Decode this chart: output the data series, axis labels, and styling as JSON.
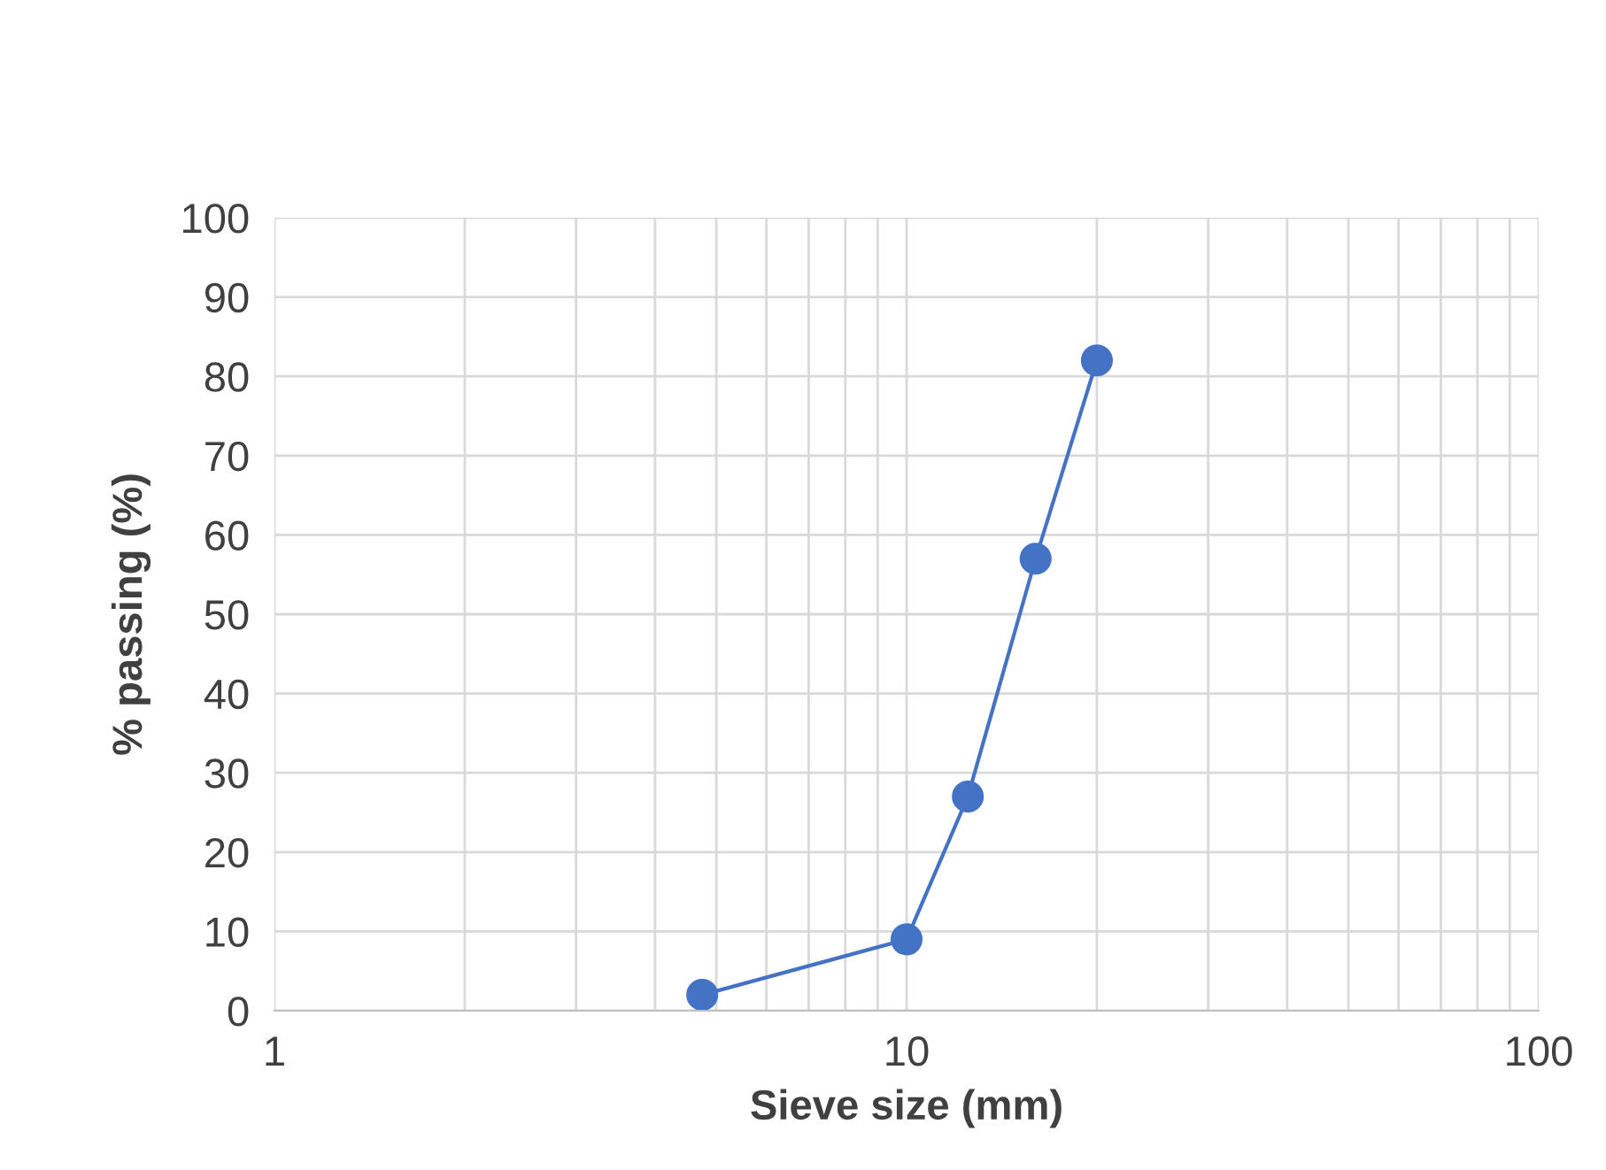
{
  "chart_data": {
    "type": "line",
    "xlabel": "Sieve size (mm)",
    "ylabel": "% passing (%)",
    "x": [
      4.75,
      10,
      12.5,
      16,
      20
    ],
    "series": [
      {
        "color": "#4472c4",
        "values": [
          2,
          9,
          27,
          57,
          82
        ]
      }
    ],
    "log": "x",
    "xlim": [
      1,
      100
    ],
    "xticks": [
      1,
      10,
      100
    ],
    "ylim": [
      0,
      100
    ],
    "yticks": [
      0,
      10,
      20,
      30,
      40,
      50,
      60,
      70,
      80,
      90,
      100
    ],
    "grid": true,
    "marker": "circle",
    "line_style": "solid"
  }
}
